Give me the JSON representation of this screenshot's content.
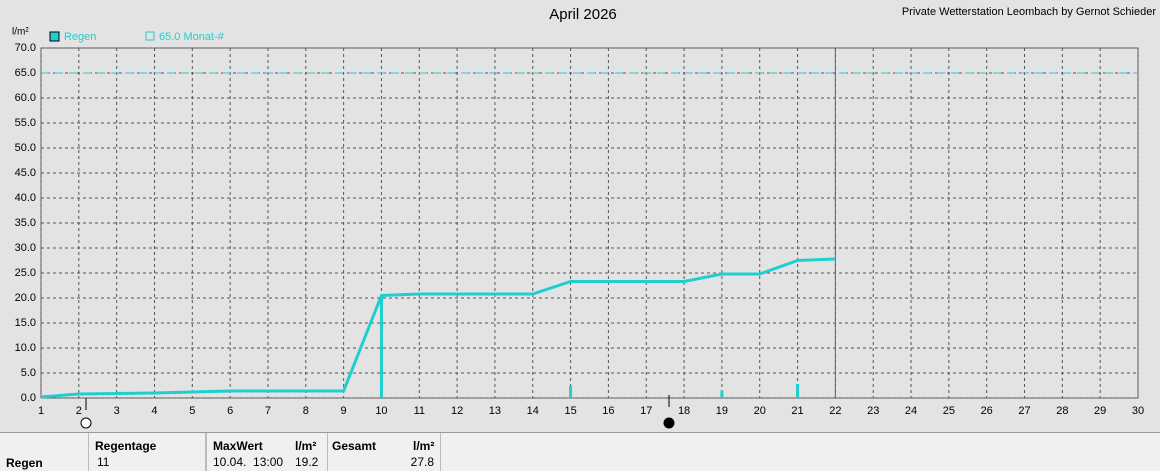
{
  "chart_data": {
    "type": "line",
    "title": "April 2026",
    "credit": "Private Wetterstation Leombach by Gernot Schieder",
    "y_label": "l/m²",
    "x": [
      1,
      2,
      3,
      4,
      5,
      6,
      7,
      8,
      9,
      10,
      11,
      12,
      13,
      14,
      15,
      16,
      17,
      18,
      19,
      20,
      21,
      22
    ],
    "series": [
      {
        "name": "Regen",
        "color": "#1fcfcf",
        "values": [
          0.2,
          0.8,
          0.9,
          1.0,
          1.2,
          1.4,
          1.4,
          1.4,
          1.4,
          20.5,
          20.8,
          20.8,
          20.8,
          20.8,
          23.3,
          23.3,
          23.3,
          23.3,
          24.8,
          24.8,
          27.5,
          27.8
        ]
      }
    ],
    "daily": {
      "x": [
        10,
        15,
        19,
        21
      ],
      "values": [
        20.5,
        2.5,
        1.5,
        2.8
      ],
      "color": "#1fcfcf"
    },
    "reference_line": {
      "value": 65,
      "label": "65.0 Monat-#",
      "color": "#1fcfcf"
    },
    "today": 22,
    "xlim": [
      1,
      30
    ],
    "xticks": [
      1,
      2,
      3,
      4,
      5,
      6,
      7,
      8,
      9,
      10,
      11,
      12,
      13,
      14,
      15,
      16,
      17,
      18,
      19,
      20,
      21,
      22,
      23,
      24,
      25,
      26,
      27,
      28,
      29,
      30
    ],
    "ylim": [
      0,
      70
    ],
    "yticks": [
      {
        "value": 0,
        "label": "0.0"
      },
      {
        "value": 5,
        "label": "5.0"
      },
      {
        "value": 10,
        "label": "10.0"
      },
      {
        "value": 15,
        "label": "15.0"
      },
      {
        "value": 20,
        "label": "20.0"
      },
      {
        "value": 25,
        "label": "25.0"
      },
      {
        "value": 30,
        "label": "30.0"
      },
      {
        "value": 35,
        "label": "35.0"
      },
      {
        "value": 40,
        "label": "40.0"
      },
      {
        "value": 45,
        "label": "45.0"
      },
      {
        "value": 50,
        "label": "50.0"
      },
      {
        "value": 55,
        "label": "55.0"
      },
      {
        "value": 60,
        "label": "60.0"
      },
      {
        "value": 65,
        "label": "65.0"
      },
      {
        "value": 70,
        "label": "70.0"
      }
    ],
    "grid": true
  },
  "footer": {
    "row_label": "Regen",
    "regentage": {
      "header": "Regentage",
      "value": 11
    },
    "maxwert": {
      "header": "MaxWert",
      "unit": "l/m²",
      "date": "10.04.  13:00",
      "value": 19.2
    },
    "gesamt": {
      "header": "Gesamt",
      "unit": "l/m²",
      "value": 27.8
    }
  }
}
